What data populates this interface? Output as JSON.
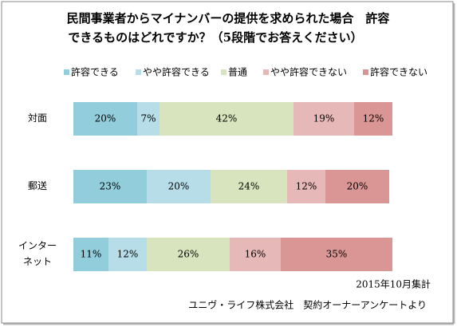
{
  "chart_data": {
    "type": "stacked-bar-horizontal",
    "title": [
      "民間事業者からマイナンバーの提供を求められた場合　許容",
      "できるものはどれですか？（5段階でお答えください）"
    ],
    "categories": [
      "対面",
      "郵送",
      "インター\nネット"
    ],
    "legend": "top",
    "series": [
      {
        "name": "許容できる",
        "color": "#92cddc",
        "values": [
          20,
          23,
          11
        ],
        "value_labels": [
          "20%",
          "23%",
          "11%"
        ]
      },
      {
        "name": "やや許容できる",
        "color": "#b7dee8",
        "values": [
          7,
          20,
          12
        ],
        "value_labels": [
          "7%",
          "20%",
          "12%"
        ]
      },
      {
        "name": "普通",
        "color": "#d7e4bd",
        "values": [
          42,
          24,
          26
        ],
        "value_labels": [
          "42%",
          "24%",
          "26%"
        ]
      },
      {
        "name": "やや許容できない",
        "color": "#e6b9b8",
        "values": [
          19,
          12,
          16
        ],
        "value_labels": [
          "19%",
          "12%",
          "16%"
        ]
      },
      {
        "name": "許容できない",
        "color": "#d99694",
        "values": [
          12,
          20,
          35
        ],
        "value_labels": [
          "12%",
          "20%",
          "35%"
        ]
      }
    ],
    "xlim": [
      0,
      100
    ],
    "notes": [
      "2015年10月集計",
      "ユニヴ・ライフ株式会社　契約オーナーアンケートより"
    ]
  }
}
